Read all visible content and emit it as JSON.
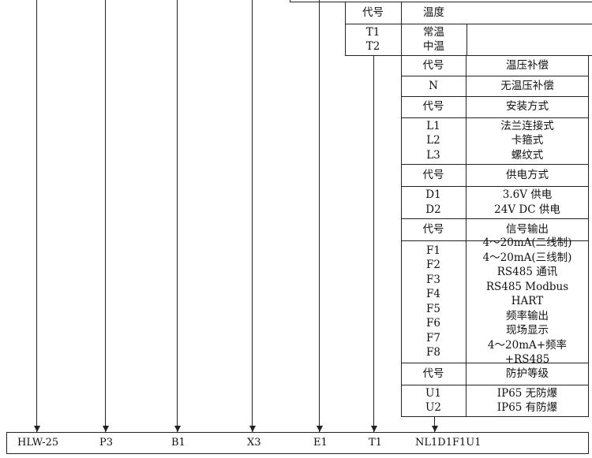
{
  "temperature": {
    "header": [
      "代号",
      "温度"
    ],
    "codes": [
      "T1",
      "T2"
    ],
    "values": [
      "常温",
      "中温"
    ]
  },
  "tables": [
    {
      "header": [
        "代号",
        "温压补偿"
      ],
      "codes": [
        "N"
      ],
      "values": [
        "无温压补偿"
      ]
    },
    {
      "header": [
        "代号",
        "安装方式"
      ],
      "codes": [
        "L1",
        "L2",
        "L3"
      ],
      "values": [
        "法兰连接式",
        "卡箍式",
        "螺纹式"
      ]
    },
    {
      "header": [
        "代号",
        "供电方式"
      ],
      "codes": [
        "D1",
        "D2"
      ],
      "values": [
        "3.6V 供电",
        "24V DC 供电"
      ]
    },
    {
      "header": [
        "代号",
        "信号输出"
      ],
      "codes": [
        "F1",
        "F2",
        "F3",
        "F4",
        "F5",
        "F6",
        "F7",
        "F8"
      ],
      "values": [
        "4～20mA(二线制)",
        "4～20mA(三线制)",
        "RS485 通讯",
        "RS485 Modbus",
        "HART",
        "频率输出",
        "现场显示",
        "4～20mA+频率+RS485"
      ]
    },
    {
      "header": [
        "代号",
        "防护等级"
      ],
      "codes": [
        "U1",
        "U2"
      ],
      "values": [
        "IP65 无防爆",
        "IP65 有防爆"
      ]
    }
  ],
  "model": [
    "HLW-25",
    "P3",
    "B1",
    "X3",
    "E1",
    "T1",
    "NL1D1F1U1"
  ]
}
